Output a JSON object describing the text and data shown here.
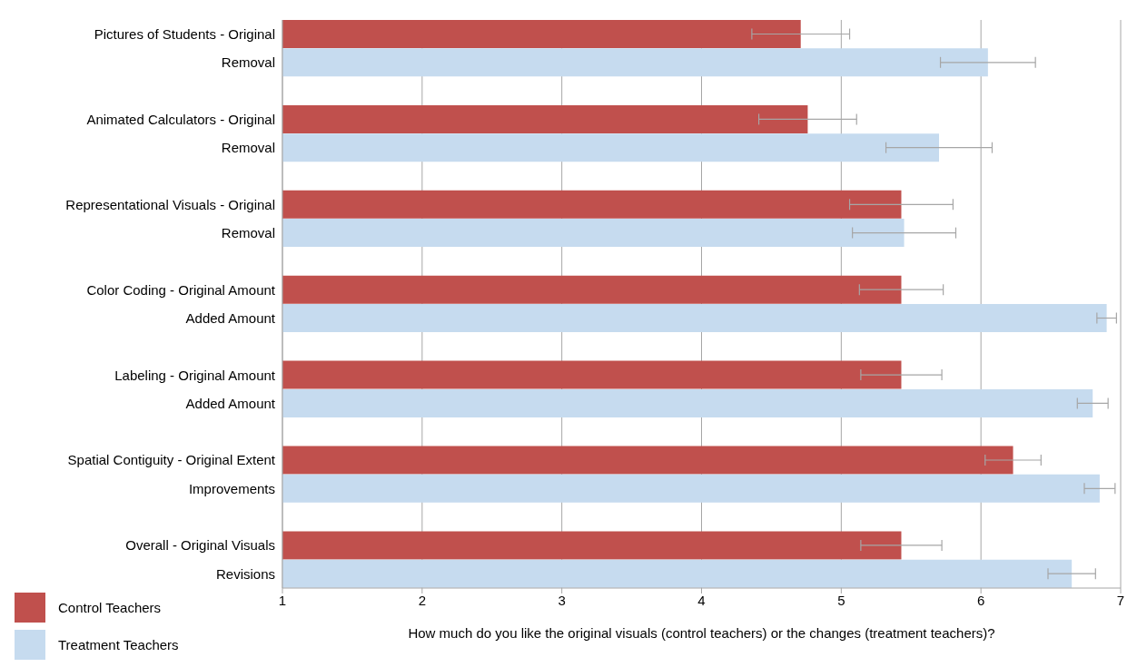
{
  "chart_data": {
    "type": "bar",
    "orientation": "horizontal",
    "xlabel": "How much do you like the original visuals (control teachers) or the changes (treatment teachers)?",
    "categories": [
      "Pictures of Students - Original",
      "Removal",
      "Animated Calculators - Original",
      "Removal",
      "Representational Visuals - Original",
      "Removal",
      "Color Coding - Original Amount",
      "Added Amount",
      "Labeling - Original Amount",
      "Added Amount",
      "Spatial Contiguity - Original Extent",
      "Improvements",
      "Overall - Original Visuals",
      "Revisions"
    ],
    "series": [
      {
        "name": "Control Teachers",
        "color": "#c0504d",
        "values": [
          4.71,
          null,
          4.76,
          null,
          5.43,
          null,
          5.43,
          null,
          5.43,
          null,
          6.23,
          null,
          5.43,
          null
        ],
        "errors": [
          0.35,
          null,
          0.35,
          null,
          0.37,
          null,
          0.3,
          null,
          0.29,
          null,
          0.2,
          null,
          0.29,
          null
        ]
      },
      {
        "name": "Treatment Teachers",
        "color": "#c6dbef",
        "values": [
          null,
          6.05,
          null,
          5.7,
          null,
          5.45,
          null,
          6.9,
          null,
          6.8,
          null,
          6.85,
          null,
          6.65
        ],
        "errors": [
          null,
          0.34,
          null,
          0.38,
          null,
          0.37,
          null,
          0.07,
          null,
          0.11,
          null,
          0.11,
          null,
          0.17
        ]
      }
    ],
    "xlim": [
      1,
      7
    ],
    "xticks": [
      1,
      2,
      3,
      4,
      5,
      6,
      7
    ],
    "grid": "x",
    "legend": "bottom left"
  }
}
